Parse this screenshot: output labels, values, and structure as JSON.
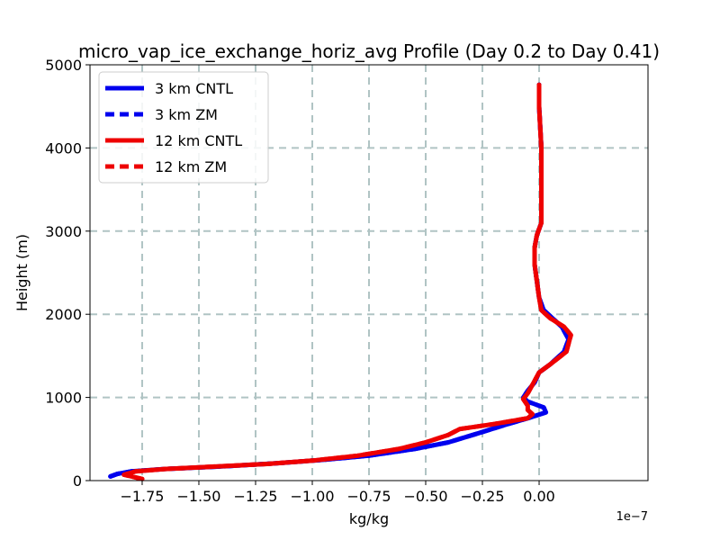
{
  "chart_data": {
    "type": "line",
    "title": "micro_vap_ice_exchange_horiz_avg Profile (Day 0.2 to Day 0.41)",
    "xlabel": "kg/kg",
    "ylabel": "Height (m)",
    "x_offset_label": "1e−7",
    "xlim": [
      -1.98,
      0.48
    ],
    "ylim": [
      0,
      5000
    ],
    "xticks": [
      -1.75,
      -1.5,
      -1.25,
      -1.0,
      -0.75,
      -0.5,
      -0.25,
      0.0
    ],
    "xtick_labels": [
      "−1.75",
      "−1.50",
      "−1.25",
      "−1.00",
      "−0.75",
      "−0.50",
      "−0.25",
      "0.00"
    ],
    "yticks": [
      0,
      1000,
      2000,
      3000,
      4000,
      5000
    ],
    "ytick_labels": [
      "0",
      "1000",
      "2000",
      "3000",
      "4000",
      "5000"
    ],
    "grid": true,
    "legend_position": "top-left",
    "series": [
      {
        "name": "3 km CNTL",
        "color": "#0000ee",
        "dash": "solid",
        "points": [
          [
            -1.89,
            50
          ],
          [
            -1.86,
            80
          ],
          [
            -1.8,
            110
          ],
          [
            -1.65,
            140
          ],
          [
            -1.4,
            170
          ],
          [
            -1.15,
            210
          ],
          [
            -0.95,
            250
          ],
          [
            -0.75,
            300
          ],
          [
            -0.55,
            380
          ],
          [
            -0.4,
            460
          ],
          [
            -0.28,
            560
          ],
          [
            -0.15,
            670
          ],
          [
            -0.05,
            750
          ],
          [
            0.03,
            820
          ],
          [
            0.02,
            880
          ],
          [
            -0.05,
            950
          ],
          [
            -0.07,
            1000
          ],
          [
            -0.05,
            1080
          ],
          [
            -0.02,
            1180
          ],
          [
            0.0,
            1300
          ],
          [
            0.05,
            1400
          ],
          [
            0.11,
            1550
          ],
          [
            0.13,
            1700
          ],
          [
            0.1,
            1850
          ],
          [
            0.02,
            2050
          ],
          [
            0.0,
            2200
          ],
          [
            -0.01,
            2400
          ],
          [
            -0.02,
            2600
          ],
          [
            -0.02,
            2800
          ],
          [
            -0.01,
            2950
          ],
          [
            0.01,
            3100
          ],
          [
            0.01,
            3500
          ],
          [
            0.01,
            4000
          ],
          [
            0.0,
            4500
          ],
          [
            0.0,
            4760
          ]
        ]
      },
      {
        "name": "3 km ZM",
        "color": "#0000ee",
        "dash": "dashed",
        "points": [
          [
            -1.89,
            50
          ],
          [
            -1.86,
            80
          ],
          [
            -1.8,
            110
          ],
          [
            -1.65,
            140
          ],
          [
            -1.4,
            170
          ],
          [
            -1.15,
            210
          ],
          [
            -0.95,
            250
          ],
          [
            -0.75,
            300
          ],
          [
            -0.55,
            380
          ],
          [
            -0.4,
            460
          ],
          [
            -0.28,
            560
          ],
          [
            -0.15,
            670
          ],
          [
            -0.05,
            750
          ],
          [
            0.03,
            820
          ],
          [
            0.02,
            880
          ],
          [
            -0.05,
            950
          ],
          [
            -0.07,
            1000
          ],
          [
            -0.05,
            1080
          ],
          [
            -0.02,
            1180
          ],
          [
            0.0,
            1300
          ],
          [
            0.05,
            1400
          ],
          [
            0.11,
            1550
          ],
          [
            0.13,
            1700
          ],
          [
            0.1,
            1850
          ],
          [
            0.02,
            2050
          ],
          [
            0.0,
            2200
          ],
          [
            -0.01,
            2400
          ],
          [
            -0.02,
            2600
          ],
          [
            -0.02,
            2800
          ],
          [
            -0.01,
            2950
          ],
          [
            0.01,
            3100
          ],
          [
            0.01,
            3500
          ],
          [
            0.01,
            4000
          ],
          [
            0.0,
            4500
          ],
          [
            0.0,
            4760
          ]
        ]
      },
      {
        "name": "12 km CNTL",
        "color": "#ee0000",
        "dash": "solid",
        "points": [
          [
            -1.75,
            20
          ],
          [
            -1.83,
            70
          ],
          [
            -1.78,
            110
          ],
          [
            -1.65,
            140
          ],
          [
            -1.42,
            170
          ],
          [
            -1.2,
            200
          ],
          [
            -1.0,
            240
          ],
          [
            -0.8,
            300
          ],
          [
            -0.62,
            380
          ],
          [
            -0.5,
            460
          ],
          [
            -0.4,
            550
          ],
          [
            -0.35,
            620
          ],
          [
            -0.2,
            680
          ],
          [
            -0.05,
            750
          ],
          [
            -0.03,
            800
          ],
          [
            -0.05,
            850
          ],
          [
            -0.05,
            900
          ],
          [
            -0.07,
            980
          ],
          [
            -0.05,
            1050
          ],
          [
            -0.03,
            1150
          ],
          [
            0.0,
            1300
          ],
          [
            0.05,
            1400
          ],
          [
            0.12,
            1550
          ],
          [
            0.14,
            1750
          ],
          [
            0.11,
            1850
          ],
          [
            0.05,
            1950
          ],
          [
            0.01,
            2050
          ],
          [
            0.0,
            2200
          ],
          [
            -0.01,
            2400
          ],
          [
            -0.02,
            2600
          ],
          [
            -0.02,
            2800
          ],
          [
            -0.01,
            2950
          ],
          [
            0.01,
            3100
          ],
          [
            0.01,
            3500
          ],
          [
            0.01,
            4000
          ],
          [
            0.0,
            4500
          ],
          [
            0.0,
            4760
          ]
        ]
      },
      {
        "name": "12 km ZM",
        "color": "#ee0000",
        "dash": "dashed",
        "points": [
          [
            -1.75,
            20
          ],
          [
            -1.83,
            70
          ],
          [
            -1.78,
            110
          ],
          [
            -1.65,
            140
          ],
          [
            -1.42,
            170
          ],
          [
            -1.2,
            200
          ],
          [
            -1.0,
            240
          ],
          [
            -0.8,
            300
          ],
          [
            -0.62,
            380
          ],
          [
            -0.5,
            460
          ],
          [
            -0.4,
            550
          ],
          [
            -0.35,
            620
          ],
          [
            -0.2,
            680
          ],
          [
            -0.05,
            750
          ],
          [
            -0.03,
            800
          ],
          [
            -0.05,
            850
          ],
          [
            -0.05,
            900
          ],
          [
            -0.07,
            980
          ],
          [
            -0.05,
            1050
          ],
          [
            -0.03,
            1150
          ],
          [
            0.0,
            1300
          ],
          [
            0.05,
            1400
          ],
          [
            0.12,
            1550
          ],
          [
            0.14,
            1750
          ],
          [
            0.11,
            1850
          ],
          [
            0.05,
            1950
          ],
          [
            0.01,
            2050
          ],
          [
            0.0,
            2200
          ],
          [
            -0.01,
            2400
          ],
          [
            -0.02,
            2600
          ],
          [
            -0.02,
            2800
          ],
          [
            -0.01,
            2950
          ],
          [
            0.01,
            3100
          ],
          [
            0.01,
            3500
          ],
          [
            0.01,
            4000
          ],
          [
            0.0,
            4500
          ],
          [
            0.0,
            4760
          ]
        ]
      }
    ]
  }
}
